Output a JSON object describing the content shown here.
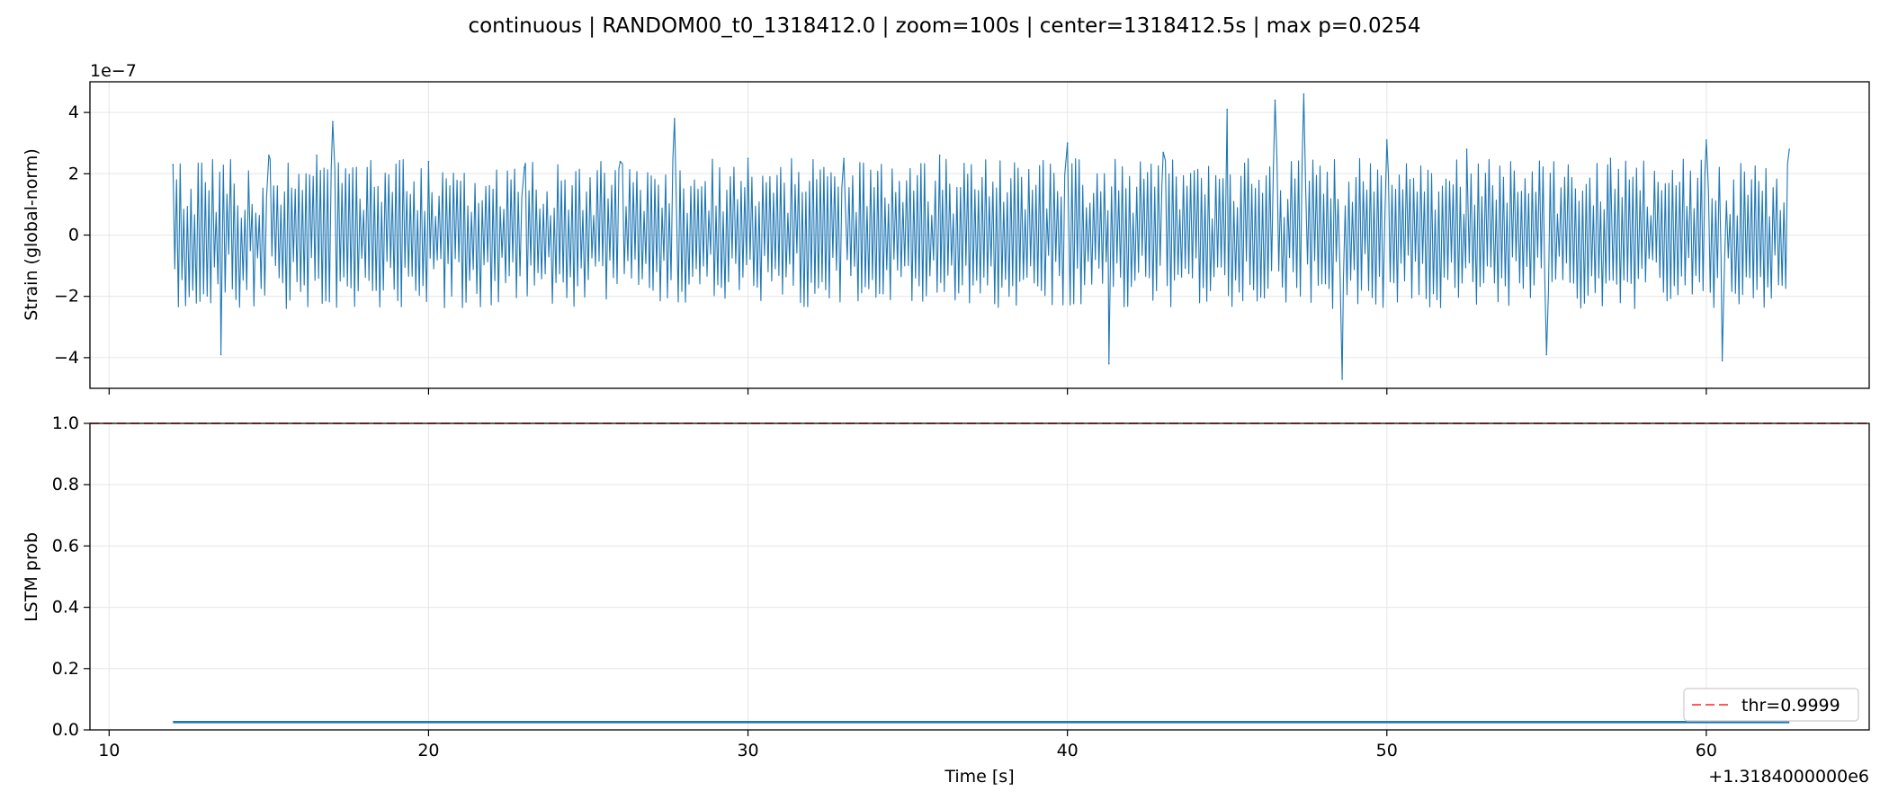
{
  "suptitle": "continuous | RANDOM00_t0_1318412.0 | zoom=100s | center=1318412.5s | max p=0.0254",
  "chart_data": [
    {
      "type": "line",
      "panel": "top",
      "ylabel": "Strain (global-norm)",
      "y_offset_text": "1e−7",
      "xlim": [
        9.4,
        65.1
      ],
      "ylim": [
        -5.0,
        5.0
      ],
      "yticks": [
        4,
        2,
        0,
        -2,
        -4
      ],
      "ytick_labels": [
        "4",
        "2",
        "0",
        "−2",
        "−4"
      ],
      "xticks": [
        10,
        20,
        30,
        40,
        50,
        60
      ],
      "show_xtick_labels": false,
      "grid": true,
      "series": [
        {
          "color": "#1f77b4",
          "x_range": [
            12.0,
            62.6
          ],
          "sample_count": 900,
          "y_envelope": {
            "typical_min": -2.4,
            "typical_max": 2.5,
            "extreme_min": -4.7,
            "extreme_max": 4.6
          },
          "x": [
            12.0,
            13.5,
            15.0,
            16.5,
            17.0,
            20.0,
            23.0,
            26.0,
            27.7,
            30.0,
            33.0,
            36.0,
            40.0,
            41.3,
            43.0,
            45.0,
            46.5,
            47.4,
            48.6,
            50.0,
            52.5,
            55.0,
            57.0,
            60.0,
            60.5,
            62.6
          ],
          "y": [
            2.3,
            -3.9,
            2.6,
            2.6,
            3.7,
            2.4,
            2.2,
            2.4,
            3.8,
            2.5,
            2.5,
            2.6,
            3.0,
            -4.2,
            2.7,
            4.1,
            4.4,
            4.6,
            -4.7,
            3.1,
            2.8,
            -3.9,
            2.5,
            3.1,
            -4.1,
            2.8
          ]
        }
      ]
    },
    {
      "type": "line",
      "panel": "bottom",
      "ylabel": "LSTM prob",
      "xlabel": "Time [s]",
      "x_offset_text": "+1.3184000000e6",
      "xlim": [
        9.4,
        65.1
      ],
      "ylim": [
        0.0,
        1.0
      ],
      "yticks": [
        1.0,
        0.8,
        0.6,
        0.4,
        0.2,
        0.0
      ],
      "ytick_labels": [
        "1.0",
        "0.8",
        "0.6",
        "0.4",
        "0.2",
        "0.0"
      ],
      "xticks": [
        10,
        20,
        30,
        40,
        50,
        60
      ],
      "xtick_labels": [
        "10",
        "20",
        "30",
        "40",
        "50",
        "60"
      ],
      "grid": true,
      "legend_position": "lower right",
      "series": [
        {
          "color": "#1f77b4",
          "x": [
            12.0,
            62.6
          ],
          "y": [
            0.0254,
            0.0254
          ]
        },
        {
          "name": "thr=0.9999",
          "color": "#ff4444",
          "style": "dashed",
          "y_constant": 0.9999
        }
      ]
    }
  ]
}
